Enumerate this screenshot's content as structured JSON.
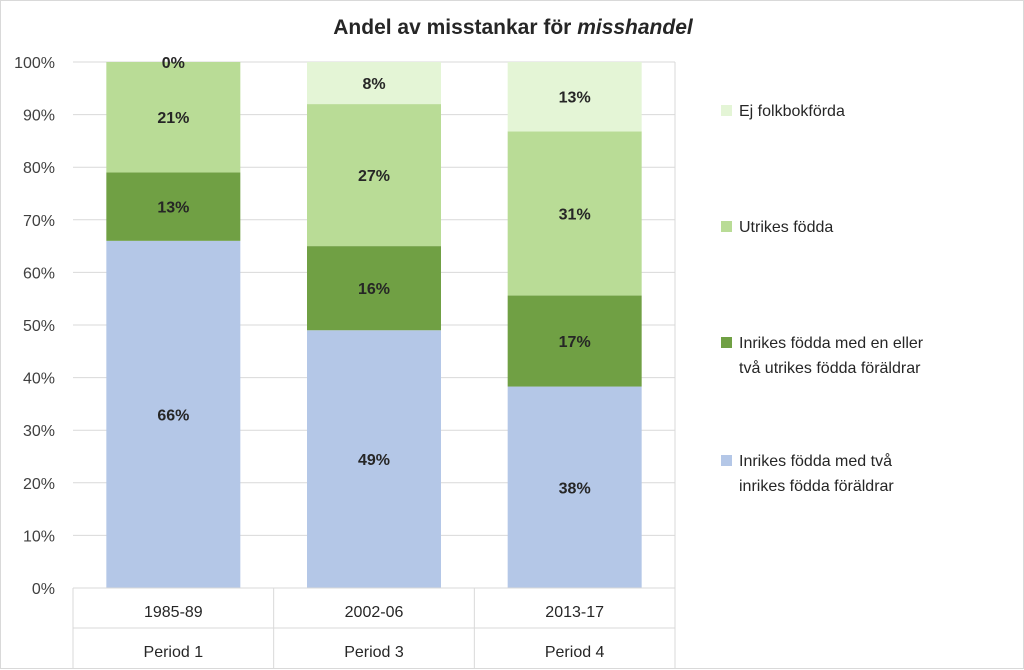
{
  "chart_data": {
    "type": "bar",
    "stacked": true,
    "title_plain": "Andel av misstankar för ",
    "title_italic": "misshandel",
    "categories": [
      "1985-89",
      "2002-06",
      "2013-17"
    ],
    "category_groups": [
      "Period 1",
      "Period 3",
      "Period 4"
    ],
    "yticks": [
      "0%",
      "10%",
      "20%",
      "30%",
      "40%",
      "50%",
      "60%",
      "70%",
      "80%",
      "90%",
      "100%"
    ],
    "ylim": [
      0,
      100
    ],
    "grid": true,
    "legend_position": "right",
    "series": [
      {
        "name": "Inrikes födda med två inrikes födda föräldrar",
        "name_lines": [
          "Inrikes födda med två",
          "inrikes födda föräldrar"
        ],
        "color": "#b4c7e7",
        "values": [
          66,
          49,
          38.3
        ],
        "labels": [
          "66%",
          "49%",
          "38%"
        ]
      },
      {
        "name": "Inrikes födda med en eller två utrikes födda föräldrar",
        "name_lines": [
          "Inrikes födda med en eller",
          "två utrikes födda föräldrar"
        ],
        "color": "#70a044",
        "values": [
          13,
          16,
          17.3
        ],
        "labels": [
          "13%",
          "16%",
          "17%"
        ]
      },
      {
        "name": "Utrikes födda",
        "name_lines": [
          "Utrikes födda"
        ],
        "color": "#b9dc96",
        "values": [
          21,
          27,
          31.2
        ],
        "labels": [
          "21%",
          "27%",
          "31%"
        ]
      },
      {
        "name": "Ej folkbokförda",
        "name_lines": [
          "Ej folkbokförda"
        ],
        "color": "#e4f5d6",
        "values": [
          0,
          8,
          13.2
        ],
        "labels": [
          "0%",
          "8%",
          "13%"
        ]
      }
    ]
  }
}
